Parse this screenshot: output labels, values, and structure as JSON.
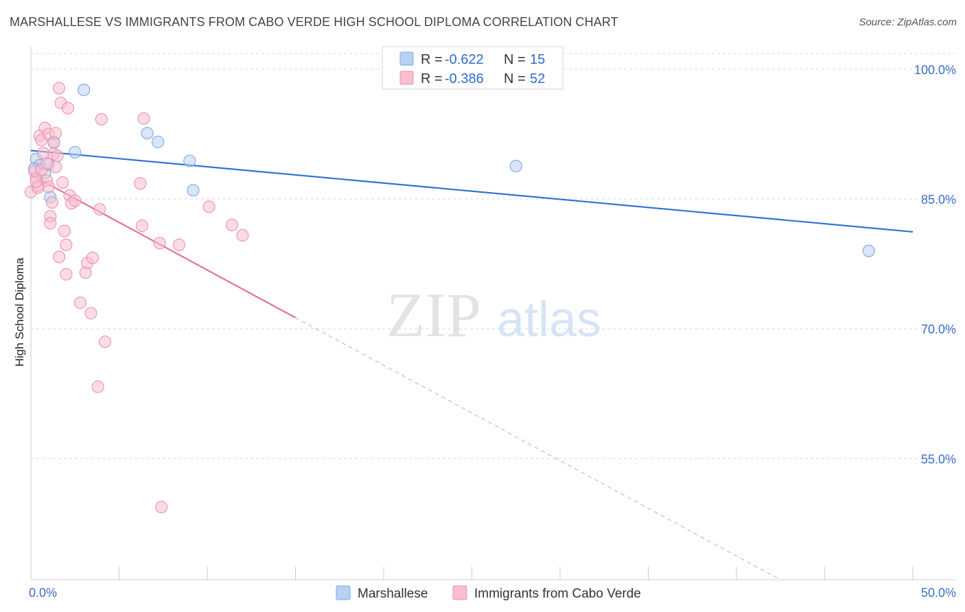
{
  "title": "MARSHALLESE VS IMMIGRANTS FROM CABO VERDE HIGH SCHOOL DIPLOMA CORRELATION CHART",
  "source": "Source: ZipAtlas.com",
  "watermark": {
    "zip": "ZIP",
    "atlas": "atlas"
  },
  "colors": {
    "blue_fill": "#b8d1f3",
    "blue_stroke": "#7aa7e0",
    "blue_line": "#2f73d4",
    "pink_fill": "#f7c0cf",
    "pink_stroke": "#ec91ab",
    "pink_line": "#e56f98",
    "grid": "#d9d9d9",
    "axis_text": "#3a6fc4"
  },
  "chart_data": {
    "type": "scatter",
    "title": "MARSHALLESE VS IMMIGRANTS FROM CABO VERDE HIGH SCHOOL DIPLOMA CORRELATION CHART",
    "xlabel": "",
    "ylabel": "High School Diploma",
    "xlim": [
      0,
      50
    ],
    "ylim": [
      41.0,
      102.6
    ],
    "x_tick_labels": [
      {
        "value": 0,
        "label": "0.0%"
      },
      {
        "value": 50,
        "label": "50.0%"
      }
    ],
    "x_minor_ticks": [
      0,
      5,
      10,
      15,
      20,
      25,
      30,
      35,
      40,
      45,
      50
    ],
    "y_ticks": [
      {
        "value": 100,
        "label": "100.0%"
      },
      {
        "value": 85,
        "label": "85.0%"
      },
      {
        "value": 70,
        "label": "70.0%"
      },
      {
        "value": 55,
        "label": "55.0%"
      }
    ],
    "legend": [
      {
        "name": "Marshallese",
        "r_label": "R =",
        "r": "-0.622",
        "n_label": "N =",
        "n": "15"
      },
      {
        "name": "Immigrants from Cabo Verde",
        "r_label": "R =",
        "r": "-0.386",
        "n_label": "N = ",
        "n": "52"
      }
    ],
    "series": [
      {
        "name": "Marshallese",
        "color": "blue",
        "points": [
          [
            0.3,
            89.6
          ],
          [
            0.5,
            88.9
          ],
          [
            0.8,
            88.0
          ],
          [
            1.0,
            89.0
          ],
          [
            1.1,
            85.2
          ],
          [
            1.3,
            91.6
          ],
          [
            2.5,
            90.4
          ],
          [
            3.0,
            97.6
          ],
          [
            6.6,
            92.6
          ],
          [
            7.2,
            91.6
          ],
          [
            9.0,
            89.4
          ],
          [
            9.2,
            86.0
          ],
          [
            27.5,
            88.8
          ],
          [
            47.5,
            79.0
          ],
          [
            0.2,
            88.5
          ]
        ],
        "trend": {
          "x1": 0,
          "y1": 90.6,
          "x2": 50,
          "y2": 81.2,
          "solid_to": 50
        }
      },
      {
        "name": "Immigrants from Cabo Verde",
        "color": "pink",
        "points": [
          [
            0.0,
            85.8
          ],
          [
            0.2,
            88.2
          ],
          [
            0.3,
            87.4
          ],
          [
            0.4,
            86.5
          ],
          [
            0.5,
            92.3
          ],
          [
            0.6,
            91.8
          ],
          [
            0.7,
            90.3
          ],
          [
            0.8,
            93.2
          ],
          [
            0.9,
            87.1
          ],
          [
            1.0,
            92.5
          ],
          [
            1.0,
            86.4
          ],
          [
            1.1,
            83.0
          ],
          [
            1.1,
            82.2
          ],
          [
            1.2,
            84.6
          ],
          [
            1.3,
            91.5
          ],
          [
            1.3,
            90.2
          ],
          [
            1.4,
            88.7
          ],
          [
            1.4,
            92.6
          ],
          [
            1.6,
            78.3
          ],
          [
            1.6,
            97.8
          ],
          [
            1.7,
            96.1
          ],
          [
            1.8,
            86.9
          ],
          [
            1.9,
            81.3
          ],
          [
            2.0,
            79.7
          ],
          [
            2.0,
            76.3
          ],
          [
            2.1,
            95.5
          ],
          [
            2.2,
            85.4
          ],
          [
            2.3,
            84.5
          ],
          [
            2.5,
            84.8
          ],
          [
            2.8,
            73.0
          ],
          [
            3.1,
            76.5
          ],
          [
            3.2,
            77.6
          ],
          [
            3.4,
            71.8
          ],
          [
            3.5,
            78.2
          ],
          [
            3.8,
            63.3
          ],
          [
            3.9,
            83.8
          ],
          [
            4.0,
            94.2
          ],
          [
            4.2,
            68.5
          ],
          [
            6.2,
            86.8
          ],
          [
            6.3,
            81.9
          ],
          [
            6.4,
            94.3
          ],
          [
            7.3,
            79.9
          ],
          [
            7.4,
            49.4
          ],
          [
            8.4,
            79.7
          ],
          [
            10.1,
            84.1
          ],
          [
            11.4,
            82.0
          ],
          [
            12.0,
            80.8
          ],
          [
            0.4,
            86.3
          ],
          [
            0.6,
            88.4
          ],
          [
            0.9,
            89.1
          ],
          [
            1.5,
            90.0
          ],
          [
            0.3,
            87.0
          ]
        ],
        "trend": {
          "x1": 0,
          "y1": 87.8,
          "x2": 42.5,
          "y2": 41.0,
          "solid_to": 15
        }
      }
    ]
  }
}
